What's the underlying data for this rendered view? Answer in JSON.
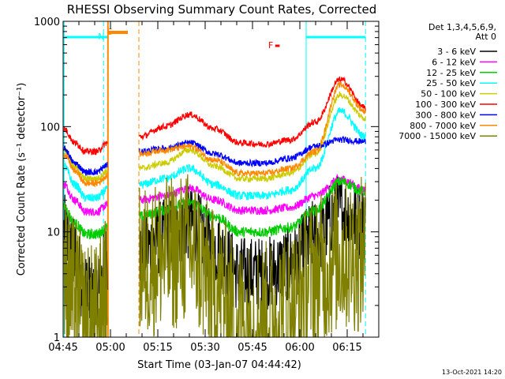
{
  "chart_data": {
    "type": "line",
    "title": "RHESSI Observing Summary Count Rates, Corrected",
    "xlabel": "Start Time (03-Jan-07 04:44:42)",
    "ylabel": "Corrected Count Rate (s⁻¹ detector⁻¹)",
    "ylim": [
      1,
      1000
    ],
    "yscale": "log",
    "yticks": [
      "1",
      "10",
      "100",
      "1000"
    ],
    "xlim_minutes": [
      0,
      100
    ],
    "xticks": [
      {
        "label": "04:45",
        "minutes": 0
      },
      {
        "label": "05:00",
        "minutes": 15
      },
      {
        "label": "05:15",
        "minutes": 30
      },
      {
        "label": "05:30",
        "minutes": 45
      },
      {
        "label": "05:45",
        "minutes": 60
      },
      {
        "label": "06:00",
        "minutes": 75
      },
      {
        "label": "06:15",
        "minutes": 90
      }
    ],
    "legend_header": [
      "Det 1,3,4,5,6,9,",
      "Att 0"
    ],
    "legend_position": "right",
    "series": [
      {
        "name": "3 - 6 keV",
        "color": "#000000",
        "seg1": [
          10,
          6,
          2.6,
          2.4,
          5.5
        ],
        "seg2": [
          6.5,
          9,
          12,
          7,
          4,
          4,
          5,
          9,
          16,
          12
        ],
        "noise": 0.12
      },
      {
        "name": "6 - 12 keV",
        "color": "#ff00ff",
        "seg1": [
          28,
          20,
          15.5,
          15.5,
          18
        ],
        "seg2": [
          20,
          22,
          26,
          20,
          16,
          16,
          17,
          22,
          32,
          25
        ],
        "noise": 0.04
      },
      {
        "name": "12 - 25 keV",
        "color": "#00cc00",
        "seg1": [
          17,
          12,
          9.5,
          9.5,
          11
        ],
        "seg2": [
          14,
          16,
          19,
          14,
          10,
          10,
          11,
          16,
          30,
          24
        ],
        "noise": 0.05
      },
      {
        "name": "25 - 50 keV",
        "color": "#00ffff",
        "seg1": [
          42,
          28,
          21,
          21,
          25
        ],
        "seg2": [
          28,
          32,
          40,
          28,
          22,
          22,
          25,
          40,
          140,
          80
        ],
        "noise": 0.04
      },
      {
        "name": "50 - 100 keV",
        "color": "#cccc00",
        "seg1": [
          60,
          42,
          32,
          32,
          38
        ],
        "seg2": [
          40,
          45,
          60,
          42,
          32,
          32,
          36,
          55,
          200,
          120
        ],
        "noise": 0.03
      },
      {
        "name": "100 - 300 keV",
        "color": "#ff0000",
        "seg1": [
          95,
          70,
          58,
          58,
          70
        ],
        "seg2": [
          80,
          100,
          130,
          95,
          70,
          68,
          75,
          110,
          280,
          150
        ],
        "noise": 0.03
      },
      {
        "name": "300 - 800 keV",
        "color": "#0000ff",
        "seg1": [
          62,
          45,
          37,
          37,
          43
        ],
        "seg2": [
          58,
          62,
          70,
          55,
          45,
          45,
          50,
          65,
          75,
          72
        ],
        "noise": 0.03
      },
      {
        "name": "800 - 7000 keV",
        "color": "#ff8800",
        "seg1": [
          55,
          38,
          29,
          29,
          34
        ],
        "seg2": [
          55,
          60,
          65,
          48,
          36,
          36,
          40,
          58,
          250,
          140
        ],
        "noise": 0.03
      },
      {
        "name": "7000 - 15000 keV",
        "color": "#808000",
        "seg1": [
          4,
          2.5,
          1.4,
          1.4,
          2.5
        ],
        "seg2": [
          5,
          6,
          7,
          3,
          1.5,
          1.5,
          2,
          4,
          6,
          6
        ],
        "noise": 0.25
      }
    ],
    "data_gap_minutes": [
      14.2,
      24.0
    ],
    "markers": [
      {
        "label": "N",
        "color": "#00ffff"
      },
      {
        "label": "S",
        "color": "#ff8800"
      },
      {
        "label": "F",
        "color": "#ff0000"
      }
    ]
  },
  "footer": {
    "timestamp": "13-Oct-2021 14:20"
  }
}
